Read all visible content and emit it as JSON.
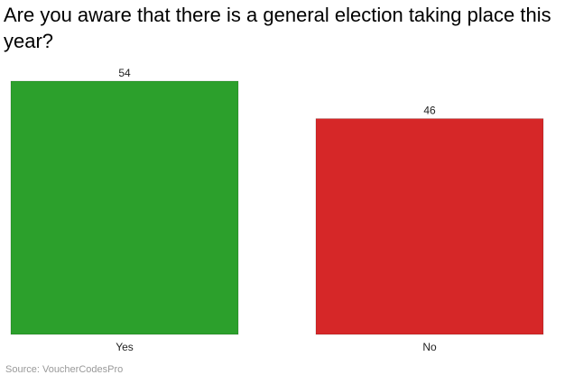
{
  "chart_data": {
    "type": "bar",
    "title": "Are you aware that there is a general election taking place this year?",
    "categories": [
      "Yes",
      "No"
    ],
    "values": [
      54,
      46
    ],
    "colors": [
      "#2ca02c",
      "#d62728"
    ],
    "ylim": [
      0,
      54
    ],
    "grid": false,
    "legend": "none",
    "xlabel": "",
    "ylabel": ""
  },
  "source": "Source: VoucherCodesPro"
}
